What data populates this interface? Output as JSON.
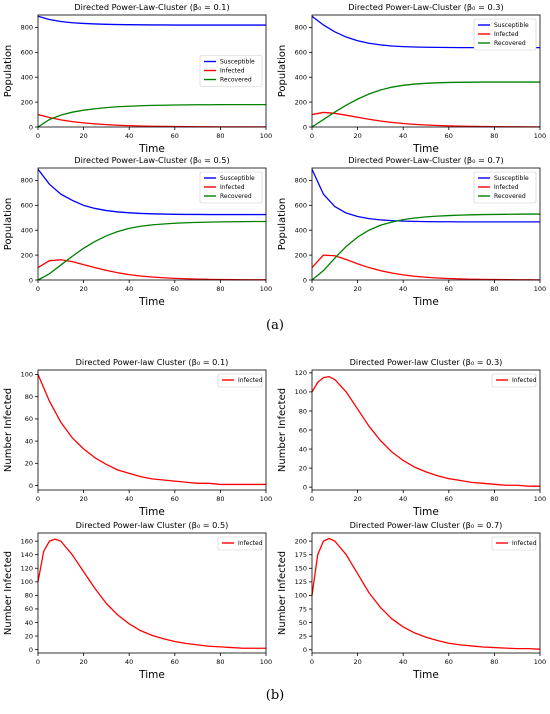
{
  "panel_labels": {
    "a": "(a)",
    "b": "(b)"
  },
  "colors": {
    "Susceptible": "#0000ff",
    "Infected": "#ff0000",
    "Recovered": "#008000",
    "axis": "#000000"
  },
  "chart_data": [
    {
      "id": "a1",
      "type": "line",
      "title": "Directed Power-Law-Cluster (β₀ = 0.1)",
      "xlabel": "Time",
      "ylabel": "Population",
      "xlim": [
        0,
        100
      ],
      "ylim": [
        0,
        900
      ],
      "xticks": [
        0,
        20,
        40,
        60,
        80,
        100
      ],
      "yticks": [
        0,
        200,
        400,
        600,
        800
      ],
      "legend": "center-right",
      "x": [
        0,
        5,
        10,
        15,
        20,
        25,
        30,
        35,
        40,
        45,
        50,
        55,
        60,
        65,
        70,
        75,
        80,
        85,
        90,
        95,
        100
      ],
      "series": [
        {
          "name": "Susceptible",
          "values": [
            890,
            864,
            848,
            838,
            832,
            828,
            825,
            823,
            822,
            821,
            820,
            820,
            819,
            819,
            819,
            819,
            819,
            819,
            819,
            819,
            819
          ]
        },
        {
          "name": "Infected",
          "values": [
            100,
            76,
            57,
            43,
            33,
            25,
            19,
            14,
            11,
            8,
            6,
            5,
            4,
            3,
            2,
            2,
            1,
            1,
            1,
            1,
            1
          ]
        },
        {
          "name": "Recovered",
          "values": [
            0,
            60,
            95,
            119,
            135,
            147,
            156,
            163,
            167,
            171,
            174,
            175,
            177,
            178,
            179,
            179,
            180,
            180,
            180,
            180,
            180
          ]
        }
      ]
    },
    {
      "id": "a2",
      "type": "line",
      "title": "Directed Power-Law-Cluster (β₀ = 0.3)",
      "xlabel": "Time",
      "ylabel": "Population",
      "xlim": [
        0,
        100
      ],
      "ylim": [
        0,
        900
      ],
      "xticks": [
        0,
        20,
        40,
        60,
        80,
        100
      ],
      "yticks": [
        0,
        200,
        400,
        600,
        800
      ],
      "legend": "top-right",
      "x": [
        0,
        5,
        10,
        15,
        20,
        25,
        30,
        35,
        40,
        45,
        50,
        55,
        60,
        65,
        70,
        75,
        80,
        85,
        90,
        95,
        100
      ],
      "series": [
        {
          "name": "Susceptible",
          "values": [
            890,
            820,
            765,
            723,
            693,
            673,
            660,
            651,
            646,
            643,
            641,
            640,
            639,
            638,
            638,
            638,
            638,
            638,
            638,
            638,
            638
          ]
        },
        {
          "name": "Infected",
          "values": [
            100,
            117,
            110,
            95,
            78,
            62,
            48,
            37,
            28,
            21,
            16,
            12,
            9,
            7,
            5,
            4,
            3,
            2,
            2,
            1,
            1
          ]
        },
        {
          "name": "Recovered",
          "values": [
            0,
            60,
            120,
            175,
            224,
            265,
            297,
            320,
            335,
            345,
            351,
            355,
            358,
            359,
            360,
            361,
            361,
            361,
            361,
            361,
            361
          ]
        }
      ]
    },
    {
      "id": "a3",
      "type": "line",
      "title": "Directed Power-Law-Cluster (β₀ = 0.5)",
      "xlabel": "Time",
      "ylabel": "Population",
      "xlim": [
        0,
        100
      ],
      "ylim": [
        0,
        900
      ],
      "xticks": [
        0,
        20,
        40,
        60,
        80,
        100
      ],
      "yticks": [
        0,
        200,
        400,
        600,
        800
      ],
      "legend": "top-right",
      "x": [
        0,
        5,
        10,
        15,
        20,
        25,
        30,
        35,
        40,
        45,
        50,
        55,
        60,
        65,
        70,
        75,
        80,
        85,
        90,
        95,
        100
      ],
      "series": [
        {
          "name": "Susceptible",
          "values": [
            890,
            770,
            690,
            640,
            600,
            575,
            558,
            547,
            540,
            535,
            532,
            530,
            528,
            527,
            527,
            526,
            526,
            526,
            526,
            526,
            526
          ]
        },
        {
          "name": "Infected",
          "values": [
            100,
            155,
            163,
            148,
            124,
            99,
            77,
            58,
            43,
            32,
            24,
            18,
            13,
            10,
            7,
            5,
            4,
            3,
            2,
            2,
            2
          ]
        },
        {
          "name": "Recovered",
          "values": [
            0,
            50,
            120,
            190,
            255,
            310,
            355,
            390,
            415,
            432,
            443,
            450,
            456,
            460,
            463,
            465,
            467,
            468,
            469,
            470,
            470
          ]
        }
      ]
    },
    {
      "id": "a4",
      "type": "line",
      "title": "Directed Power-Law-Cluster (β₀ = 0.7)",
      "xlabel": "Time",
      "ylabel": "Population",
      "xlim": [
        0,
        100
      ],
      "ylim": [
        0,
        900
      ],
      "xticks": [
        0,
        20,
        40,
        60,
        80,
        100
      ],
      "yticks": [
        0,
        200,
        400,
        600,
        800
      ],
      "legend": "top-right",
      "x": [
        0,
        5,
        10,
        15,
        20,
        25,
        30,
        35,
        40,
        45,
        50,
        55,
        60,
        65,
        70,
        75,
        80,
        85,
        90,
        95,
        100
      ],
      "series": [
        {
          "name": "Susceptible",
          "values": [
            890,
            690,
            590,
            538,
            510,
            493,
            483,
            477,
            473,
            471,
            469,
            468,
            468,
            467,
            467,
            467,
            467,
            467,
            467,
            467,
            467
          ]
        },
        {
          "name": "Infected",
          "values": [
            100,
            200,
            195,
            165,
            130,
            100,
            75,
            56,
            41,
            30,
            22,
            16,
            12,
            9,
            6,
            5,
            4,
            3,
            2,
            2,
            1
          ]
        },
        {
          "name": "Recovered",
          "values": [
            0,
            75,
            175,
            270,
            345,
            400,
            440,
            465,
            485,
            498,
            507,
            513,
            518,
            521,
            524,
            526,
            527,
            528,
            529,
            530,
            530
          ]
        }
      ]
    },
    {
      "id": "b1",
      "type": "line",
      "title": "Directed Power-law Cluster (β₀ = 0.1)",
      "xlabel": "Time",
      "ylabel": "Number Infected",
      "xlim": [
        0,
        100
      ],
      "ylim": [
        -4,
        104
      ],
      "xticks": [
        0,
        20,
        40,
        60,
        80,
        100
      ],
      "yticks": [
        0,
        20,
        40,
        60,
        80,
        100
      ],
      "legend": "top-right",
      "x": [
        0,
        5,
        10,
        15,
        20,
        25,
        30,
        35,
        40,
        45,
        50,
        55,
        60,
        65,
        70,
        75,
        80,
        85,
        90,
        95,
        100
      ],
      "series": [
        {
          "name": "Infected",
          "values": [
            100,
            76,
            57,
            43,
            33,
            25,
            19,
            14,
            11,
            8,
            6,
            5,
            4,
            3,
            2,
            2,
            1,
            1,
            1,
            1,
            1
          ]
        }
      ]
    },
    {
      "id": "b2",
      "type": "line",
      "title": "Directed Power-law Cluster (β₀ = 0.3)",
      "xlabel": "Time",
      "ylabel": "Number Infected",
      "xlim": [
        0,
        100
      ],
      "ylim": [
        -3,
        123
      ],
      "xticks": [
        0,
        20,
        40,
        60,
        80,
        100
      ],
      "yticks": [
        0,
        20,
        40,
        60,
        80,
        100,
        120
      ],
      "legend": "top-right",
      "x": [
        0,
        2.5,
        5,
        7.5,
        10,
        15,
        20,
        25,
        30,
        35,
        40,
        45,
        50,
        55,
        60,
        65,
        70,
        75,
        80,
        85,
        90,
        95,
        100
      ],
      "series": [
        {
          "name": "Infected",
          "values": [
            100,
            110,
            115,
            116,
            113,
            100,
            82,
            64,
            49,
            37,
            28,
            21,
            16,
            12,
            9,
            7,
            5,
            4,
            3,
            2,
            2,
            1,
            1
          ]
        }
      ]
    },
    {
      "id": "b3",
      "type": "line",
      "title": "Directed Power-law Cluster (β₀ = 0.5)",
      "xlabel": "Time",
      "ylabel": "Number Infected",
      "xlim": [
        0,
        100
      ],
      "ylim": [
        -5,
        172
      ],
      "xticks": [
        0,
        20,
        40,
        60,
        80,
        100
      ],
      "yticks": [
        0,
        20,
        40,
        60,
        80,
        100,
        120,
        140,
        160
      ],
      "legend": "top-right",
      "x": [
        0,
        2.5,
        5,
        7.5,
        10,
        15,
        20,
        25,
        30,
        35,
        40,
        45,
        50,
        55,
        60,
        65,
        70,
        75,
        80,
        85,
        90,
        95,
        100
      ],
      "series": [
        {
          "name": "Infected",
          "values": [
            100,
            145,
            160,
            163,
            160,
            140,
            115,
            90,
            68,
            51,
            38,
            28,
            21,
            16,
            12,
            9,
            7,
            5,
            4,
            3,
            2,
            2,
            2
          ]
        }
      ]
    },
    {
      "id": "b4",
      "type": "line",
      "title": "Directed Power-law Cluster (β₀ = 0.7)",
      "xlabel": "Time",
      "ylabel": "Number Infected",
      "xlim": [
        0,
        100
      ],
      "ylim": [
        -6,
        215
      ],
      "xticks": [
        0,
        20,
        40,
        60,
        80,
        100
      ],
      "yticks": [
        0,
        25,
        50,
        75,
        100,
        125,
        150,
        175,
        200
      ],
      "legend": "top-right",
      "x": [
        0,
        2.5,
        5,
        7.5,
        10,
        15,
        20,
        25,
        30,
        35,
        40,
        45,
        50,
        55,
        60,
        65,
        70,
        75,
        80,
        85,
        90,
        95,
        100
      ],
      "series": [
        {
          "name": "Infected",
          "values": [
            100,
            175,
            200,
            205,
            200,
            175,
            140,
            105,
            78,
            57,
            42,
            31,
            23,
            17,
            12,
            9,
            7,
            5,
            4,
            3,
            2,
            2,
            1
          ]
        }
      ]
    }
  ]
}
